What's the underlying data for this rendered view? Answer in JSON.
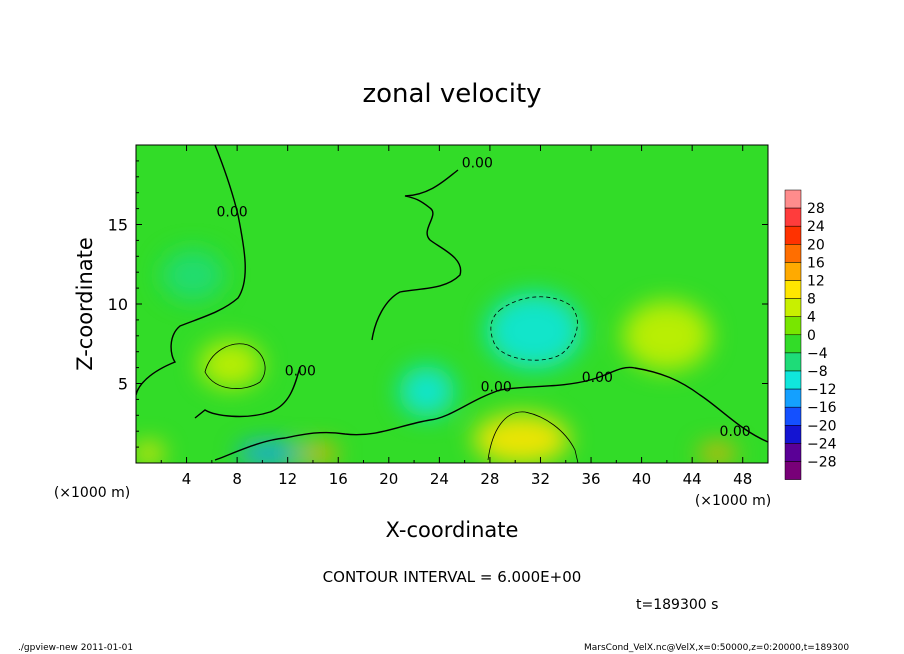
{
  "chart_data": {
    "type": "heatmap",
    "title": "zonal velocity",
    "xlabel": "X-coordinate",
    "ylabel": "Z-coordinate",
    "x_unit_label": "(×1000 m)",
    "y_unit_label": "(×1000 m)",
    "xlim": [
      0,
      50
    ],
    "ylim": [
      0,
      20
    ],
    "x_ticks": [
      4,
      8,
      12,
      16,
      20,
      24,
      28,
      32,
      36,
      40,
      44,
      48
    ],
    "y_ticks": [
      5,
      10,
      15
    ],
    "contour_interval_text": "CONTOUR INTERVAL = 6.000E+00",
    "time_text": "t=189300 s",
    "contour_labels": [
      {
        "text": "0.00",
        "x": 27,
        "y": 18.6
      },
      {
        "text": "0.00",
        "x": 7.6,
        "y": 15.5
      },
      {
        "text": "0.00",
        "x": 13,
        "y": 5.5
      },
      {
        "text": "0.00",
        "x": 28.5,
        "y": 4.5
      },
      {
        "text": "0.00",
        "x": 36.5,
        "y": 5.1
      },
      {
        "text": "0.00",
        "x": 47.4,
        "y": 1.7
      }
    ],
    "colorbar": {
      "levels": [
        28,
        24,
        20,
        16,
        12,
        8,
        4,
        0,
        -4,
        -8,
        -12,
        -16,
        -20,
        -24,
        -28
      ],
      "colors": [
        "#ff8c8c",
        "#ff3c3c",
        "#ff3200",
        "#ff6e00",
        "#ffaa00",
        "#ffe600",
        "#c8f000",
        "#78e600",
        "#32dc28",
        "#1edc78",
        "#10e6dc",
        "#14a0ff",
        "#1450ff",
        "#1414d2",
        "#5a0096",
        "#780078"
      ]
    },
    "field_regions": [
      {
        "level": "-8",
        "x": 31.5,
        "y": 8.3,
        "rx": 3.8,
        "ry": 2.4
      },
      {
        "level": "-8",
        "x": 23,
        "y": 4.5,
        "rx": 2.2,
        "ry": 1.6
      },
      {
        "level": "-4",
        "x": 4.5,
        "y": 11.8,
        "rx": 2.5,
        "ry": 1.6
      },
      {
        "level": "4",
        "x": 7.5,
        "y": 6.2,
        "rx": 2.5,
        "ry": 1.5
      },
      {
        "level": "8",
        "x": 30.5,
        "y": 1.5,
        "rx": 3.8,
        "ry": 1.6
      },
      {
        "level": "4",
        "x": 42,
        "y": 8,
        "rx": 3.5,
        "ry": 2.2
      },
      {
        "level": "-12",
        "x": 10.5,
        "y": 0.6,
        "rx": 2.5,
        "ry": 0.7
      },
      {
        "level": "12",
        "x": 14.5,
        "y": 0.6,
        "rx": 1.5,
        "ry": 0.6
      },
      {
        "level": "12",
        "x": 46,
        "y": 0.6,
        "rx": 1.5,
        "ry": 0.6
      },
      {
        "level": "8",
        "x": 1,
        "y": 0.6,
        "rx": 1.2,
        "ry": 0.7
      }
    ]
  },
  "footer": {
    "left_text": "./gpview-new   2011-01-01",
    "right_text": "MarsCond_VelX.nc@VelX,x=0:50000,z=0:20000,t=189300"
  }
}
